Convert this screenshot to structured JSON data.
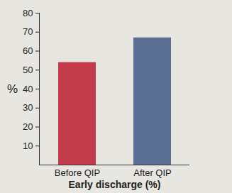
{
  "chart_data": {
    "type": "bar",
    "categories": [
      "Before QIP",
      "After QIP"
    ],
    "values": [
      54,
      67
    ],
    "colors": [
      "#c23b4a",
      "#5b6e94"
    ],
    "xlabel": "Early discharge (%)",
    "ylabel": "%",
    "ylim": [
      0,
      80
    ],
    "yticks": [
      10,
      20,
      30,
      40,
      50,
      60,
      70,
      80
    ],
    "grid": false
  }
}
